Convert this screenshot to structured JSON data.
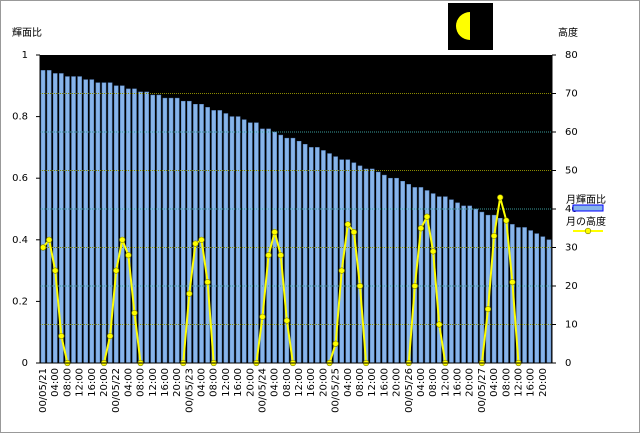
{
  "chart_data": {
    "type": "bar-line",
    "ylabel": "輝面比",
    "y2label": "高度",
    "categories": [
      "00/05/21",
      null,
      "04:00",
      null,
      "08:00",
      null,
      "12:00",
      null,
      "16:00",
      null,
      "20:00",
      null,
      "00/05/22",
      null,
      "04:00",
      null,
      "08:00",
      null,
      "12:00",
      null,
      "16:00",
      null,
      "20:00",
      null,
      "00/05/23",
      null,
      "04:00",
      null,
      "08:00",
      null,
      "12:00",
      null,
      "16:00",
      null,
      "20:00",
      null,
      "00/05/24",
      null,
      "04:00",
      null,
      "08:00",
      null,
      "12:00",
      null,
      "16:00",
      null,
      "20:00",
      null,
      "00/05/25",
      null,
      "04:00",
      null,
      "08:00",
      null,
      "12:00",
      null,
      "16:00",
      null,
      "20:00",
      null,
      "00/05/26",
      null,
      "04:00",
      null,
      "08:00",
      null,
      "12:00",
      null,
      "16:00",
      null,
      "20:00",
      null,
      "00/05/27",
      null,
      "04:00",
      null,
      "08:00",
      null,
      "12:00",
      null,
      "16:00",
      null,
      "20:00",
      null
    ],
    "series": [
      {
        "name": "月輝面比",
        "type": "bar",
        "color": "#87b4ea",
        "values": [
          0.95,
          0.95,
          0.94,
          0.94,
          0.93,
          0.93,
          0.93,
          0.92,
          0.92,
          0.91,
          0.91,
          0.91,
          0.9,
          0.9,
          0.89,
          0.89,
          0.88,
          0.88,
          0.87,
          0.87,
          0.86,
          0.86,
          0.86,
          0.85,
          0.85,
          0.84,
          0.84,
          0.83,
          0.82,
          0.82,
          0.81,
          0.8,
          0.8,
          0.79,
          0.78,
          0.78,
          0.76,
          0.76,
          0.75,
          0.74,
          0.73,
          0.73,
          0.72,
          0.71,
          0.7,
          0.7,
          0.69,
          0.68,
          0.67,
          0.66,
          0.66,
          0.65,
          0.64,
          0.63,
          0.63,
          0.62,
          0.61,
          0.6,
          0.6,
          0.59,
          0.58,
          0.57,
          0.57,
          0.56,
          0.55,
          0.54,
          0.54,
          0.53,
          0.52,
          0.51,
          0.51,
          0.5,
          0.49,
          0.48,
          0.48,
          0.47,
          0.46,
          0.45,
          0.44,
          0.44,
          0.43,
          0.42,
          0.41,
          0.4
        ]
      },
      {
        "name": "月の高度",
        "type": "line",
        "axis": "y2",
        "color": "#ffff00",
        "values": [
          30,
          32,
          24,
          7,
          0,
          null,
          null,
          null,
          null,
          null,
          0,
          7,
          24,
          32,
          28,
          13,
          0,
          null,
          null,
          null,
          null,
          null,
          null,
          0,
          18,
          31,
          32,
          21,
          0,
          null,
          null,
          null,
          null,
          null,
          null,
          0,
          12,
          28,
          34,
          28,
          11,
          0,
          null,
          null,
          null,
          null,
          null,
          0,
          5,
          24,
          36,
          34,
          20,
          0,
          null,
          null,
          null,
          null,
          null,
          null,
          0,
          20,
          35,
          38,
          29,
          10,
          0,
          null,
          null,
          null,
          null,
          null,
          0,
          14,
          33,
          43,
          37,
          21,
          0,
          null,
          null,
          null,
          null,
          null
        ]
      }
    ],
    "ylim": [
      0,
      1
    ],
    "yticks": [
      0,
      0.2,
      0.4,
      0.6,
      0.8,
      1
    ],
    "y2lim": [
      0,
      80
    ],
    "y2ticks": [
      0,
      10,
      20,
      30,
      40,
      50,
      60,
      70,
      80
    ],
    "grid": true,
    "legend": "right"
  }
}
